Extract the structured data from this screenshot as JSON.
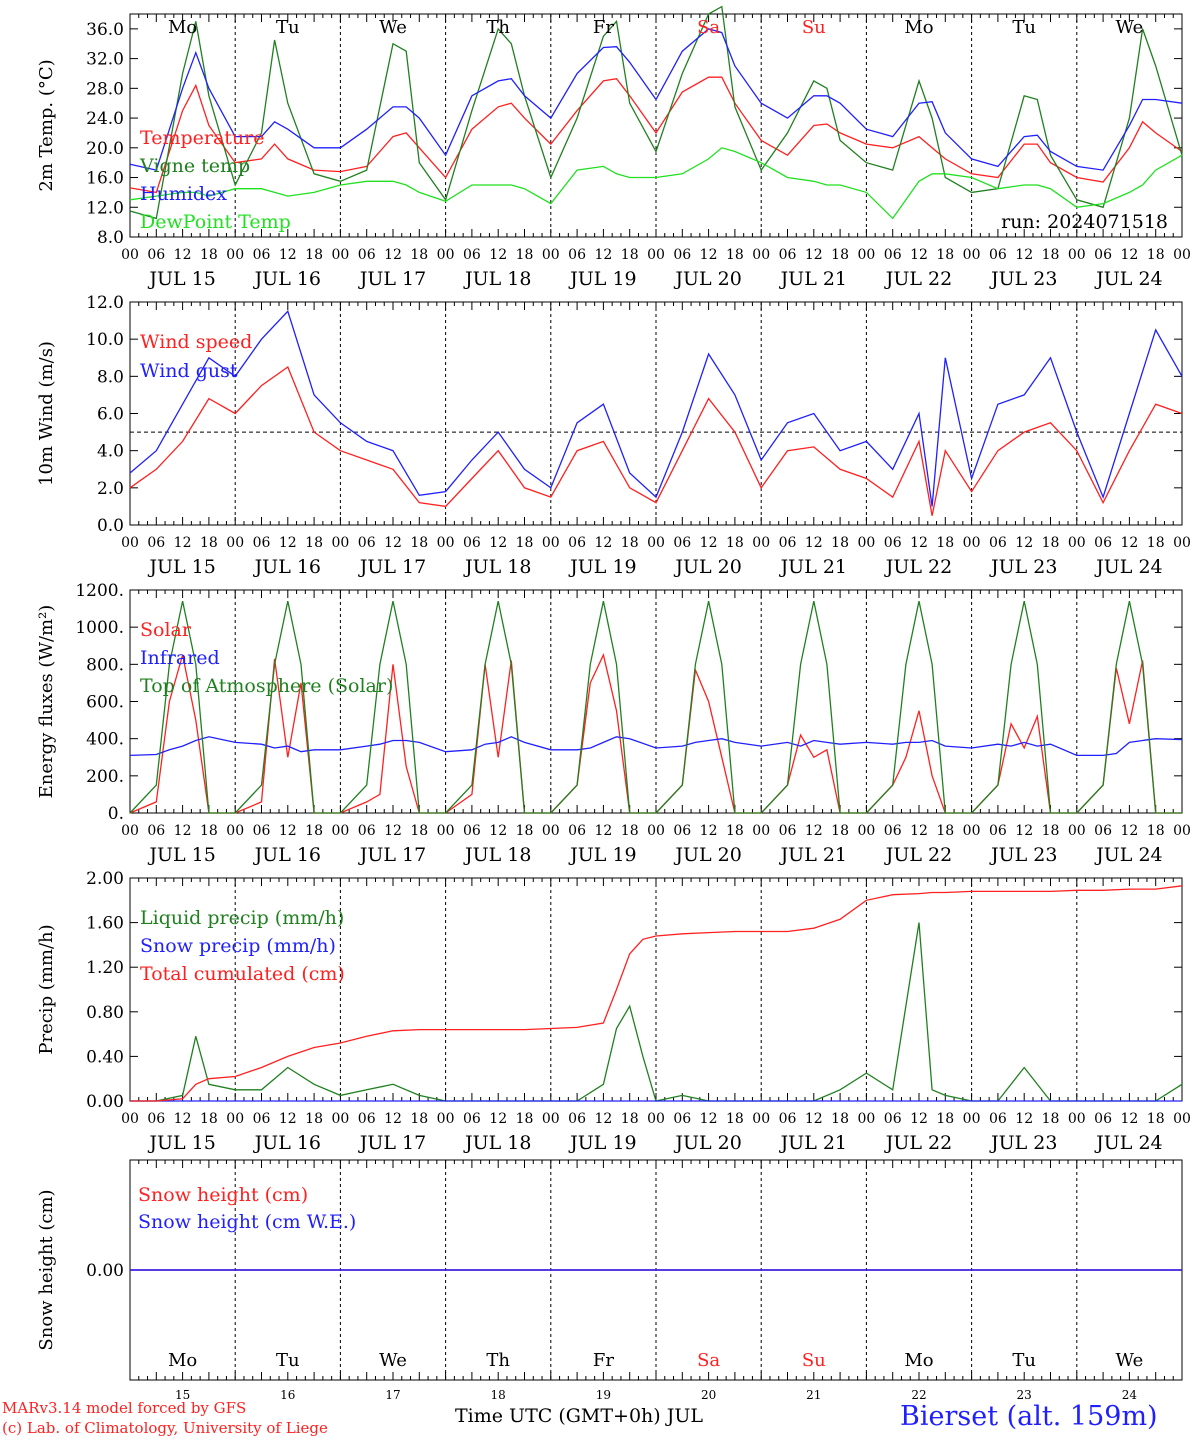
{
  "run_label": "run: 2024071518",
  "hour_ticks": [
    "00",
    "06",
    "12",
    "18"
  ],
  "date_labels": [
    "JUL 15",
    "JUL 16",
    "JUL 17",
    "JUL 18",
    "JUL 19",
    "JUL 20",
    "JUL 21",
    "JUL 22",
    "JUL 23",
    "JUL 24"
  ],
  "weekdays": [
    "Mo",
    "Tu",
    "We",
    "Th",
    "Fr",
    "Sa",
    "Su",
    "Mo",
    "Tu",
    "We"
  ],
  "weekend_color": "#ff2020",
  "weekday_color": "#000000",
  "day_numbers": [
    "15",
    "16",
    "17",
    "18",
    "19",
    "20",
    "21",
    "22",
    "23",
    "24"
  ],
  "footer": {
    "model": "MARv3.14 model forced by GFS",
    "copyright": "(c) Lab. of Climatology, University of Liege",
    "xlabel": "Time UTC (GMT+0h) JUL",
    "station": "Bierset (alt. 159m)"
  },
  "chart_data": [
    {
      "type": "line",
      "ylabel": "2m Temp. (°C)",
      "ylim": [
        8,
        38
      ],
      "yticks": [
        "8.0",
        "12.0",
        "16.0",
        "20.0",
        "24.0",
        "28.0",
        "32.0",
        "36.0"
      ],
      "x_hours_from_jul15_00": [
        0,
        6,
        12,
        15,
        18,
        24,
        30,
        33,
        36,
        42,
        48,
        54,
        60,
        63,
        66,
        72,
        78,
        84,
        87,
        90,
        96,
        102,
        108,
        111,
        114,
        120,
        126,
        132,
        135,
        138,
        144,
        150,
        156,
        159,
        162,
        168,
        174,
        180,
        183,
        186,
        192,
        198,
        204,
        207,
        210,
        216,
        222,
        228,
        231,
        234,
        240
      ],
      "series": [
        {
          "name": "Temperature",
          "color": "#ff2020",
          "values": [
            14.6,
            14.0,
            25.0,
            28.4,
            23.0,
            18.0,
            18.5,
            20.5,
            18.5,
            17.0,
            16.8,
            17.5,
            21.5,
            22.0,
            20.0,
            16.0,
            22.5,
            25.5,
            26.0,
            24.0,
            20.5,
            25.0,
            29.0,
            29.3,
            27.0,
            22.0,
            27.5,
            29.5,
            29.5,
            26.0,
            21.0,
            19.0,
            23.0,
            23.2,
            22.0,
            20.5,
            20.0,
            21.5,
            20.0,
            18.5,
            16.5,
            16.0,
            20.5,
            20.5,
            18.0,
            16.0,
            15.4,
            20.0,
            23.5,
            22.0,
            19.5
          ]
        },
        {
          "name": "Vigne temp",
          "color": "#208020",
          "values": [
            11.5,
            10.5,
            30.0,
            37.0,
            27.0,
            15.0,
            22.0,
            34.5,
            26.0,
            16.5,
            15.5,
            17.0,
            34.0,
            33.0,
            18.0,
            13.0,
            25.0,
            36.0,
            34.0,
            27.0,
            16.0,
            24.0,
            35.0,
            37.0,
            26.0,
            19.5,
            30.0,
            38.0,
            39.0,
            25.5,
            17.0,
            22.0,
            29.0,
            28.0,
            21.0,
            18.0,
            17.0,
            29.0,
            24.0,
            16.0,
            14.0,
            14.5,
            27.0,
            26.5,
            19.0,
            13.0,
            12.0,
            24.0,
            36.0,
            31.0,
            19.0
          ]
        },
        {
          "name": "Humidex",
          "color": "#2020ff",
          "values": [
            17.8,
            17.0,
            28.0,
            32.8,
            28.0,
            21.5,
            21.5,
            23.5,
            22.5,
            20.0,
            20.0,
            22.5,
            25.5,
            25.5,
            24.0,
            19.0,
            27.0,
            29.0,
            29.3,
            27.0,
            24.0,
            30.0,
            33.5,
            33.6,
            31.5,
            26.5,
            33.0,
            36.0,
            35.5,
            31.0,
            26.0,
            24.0,
            27.0,
            27.0,
            26.0,
            22.5,
            21.5,
            26.0,
            26.2,
            22.0,
            18.5,
            17.5,
            21.5,
            21.7,
            19.5,
            17.5,
            17.0,
            23.0,
            26.5,
            26.5,
            26.0
          ]
        },
        {
          "name": "DewPoint Temp",
          "color": "#20e020",
          "values": [
            13.0,
            13.5,
            14.0,
            14.0,
            13.5,
            14.5,
            14.5,
            14.0,
            13.5,
            14.0,
            15.0,
            15.5,
            15.5,
            15.0,
            14.0,
            12.8,
            15.0,
            15.0,
            15.0,
            14.5,
            12.5,
            17.0,
            17.5,
            16.5,
            16.0,
            16.0,
            16.5,
            18.5,
            20.0,
            19.5,
            18.0,
            16.0,
            15.5,
            15.0,
            15.0,
            14.0,
            10.5,
            15.5,
            16.5,
            16.5,
            16.0,
            14.5,
            15.0,
            15.0,
            14.5,
            12.0,
            12.5,
            14.0,
            15.0,
            17.0,
            19.0
          ]
        }
      ]
    },
    {
      "type": "line",
      "ylabel": "10m Wind (m/s)",
      "ylim": [
        0,
        12
      ],
      "yticks": [
        "0.0",
        "2.0",
        "4.0",
        "6.0",
        "8.0",
        "10.0",
        "12.0"
      ],
      "reference_line": 5.0,
      "x_hours_from_jul15_00": [
        0,
        6,
        12,
        18,
        24,
        30,
        36,
        42,
        48,
        54,
        60,
        66,
        72,
        78,
        84,
        90,
        96,
        102,
        108,
        114,
        120,
        126,
        132,
        138,
        144,
        150,
        156,
        162,
        168,
        174,
        180,
        183,
        186,
        192,
        198,
        204,
        210,
        216,
        222,
        228,
        234,
        240
      ],
      "series": [
        {
          "name": "Wind speed",
          "color": "#ff2020",
          "values": [
            2.0,
            3.0,
            4.5,
            6.8,
            6.0,
            7.5,
            8.5,
            5.0,
            4.0,
            3.5,
            3.0,
            1.2,
            1.0,
            2.5,
            4.0,
            2.0,
            1.5,
            4.0,
            4.5,
            2.0,
            1.2,
            4.0,
            6.8,
            5.0,
            2.0,
            4.0,
            4.2,
            3.0,
            2.5,
            1.5,
            4.5,
            0.5,
            4.0,
            1.8,
            4.0,
            5.0,
            5.5,
            4.0,
            1.2,
            4.0,
            6.5,
            6.0
          ]
        },
        {
          "name": "Wind gust",
          "color": "#2020ff",
          "values": [
            2.8,
            4.0,
            6.5,
            9.0,
            8.0,
            10.0,
            11.5,
            7.0,
            5.5,
            4.5,
            4.0,
            1.6,
            1.8,
            3.5,
            5.0,
            3.0,
            2.0,
            5.5,
            6.5,
            2.8,
            1.5,
            5.0,
            9.2,
            7.0,
            3.5,
            5.5,
            6.0,
            4.0,
            4.5,
            3.0,
            6.0,
            1.0,
            9.0,
            2.5,
            6.5,
            7.0,
            9.0,
            5.0,
            1.5,
            6.0,
            10.5,
            8.0
          ]
        }
      ]
    },
    {
      "type": "line",
      "ylabel": "Energy fluxes (W/m²)",
      "ylim": [
        0,
        1200
      ],
      "yticks": [
        "0.",
        "200.",
        "400.",
        "600.",
        "800.",
        "1000.",
        "1200."
      ],
      "x_hours_from_jul15_00": [
        0,
        6,
        9,
        12,
        15,
        18,
        24,
        30,
        33,
        36,
        39,
        42,
        48,
        54,
        57,
        60,
        63,
        66,
        72,
        78,
        81,
        84,
        87,
        90,
        96,
        102,
        105,
        108,
        111,
        114,
        120,
        126,
        129,
        132,
        135,
        138,
        144,
        150,
        153,
        156,
        159,
        162,
        168,
        174,
        177,
        180,
        183,
        186,
        192,
        198,
        201,
        204,
        207,
        210,
        216,
        222,
        225,
        228,
        231,
        234,
        240
      ],
      "series": [
        {
          "name": "Solar",
          "color": "#ff2020",
          "values": [
            0,
            60,
            600,
            850,
            500,
            0,
            0,
            60,
            830,
            300,
            700,
            0,
            0,
            60,
            100,
            800,
            250,
            0,
            0,
            100,
            800,
            300,
            820,
            0,
            0,
            150,
            700,
            850,
            550,
            0,
            0,
            150,
            770,
            600,
            300,
            0,
            0,
            150,
            420,
            300,
            340,
            0,
            0,
            150,
            300,
            550,
            200,
            0,
            0,
            150,
            480,
            350,
            520,
            0,
            0,
            150,
            780,
            480,
            820,
            0,
            0
          ]
        },
        {
          "name": "Infrared",
          "color": "#2020ff",
          "values": [
            310,
            315,
            340,
            360,
            390,
            410,
            380,
            370,
            350,
            360,
            330,
            340,
            340,
            360,
            370,
            390,
            390,
            380,
            330,
            340,
            370,
            380,
            410,
            380,
            340,
            340,
            350,
            380,
            410,
            400,
            350,
            360,
            380,
            390,
            400,
            380,
            360,
            380,
            360,
            390,
            380,
            370,
            380,
            370,
            380,
            380,
            390,
            360,
            350,
            370,
            360,
            380,
            360,
            370,
            310,
            310,
            320,
            380,
            390,
            400,
            395
          ]
        },
        {
          "name": "Top of Atmosphere (Solar)",
          "color": "#208020",
          "values": [
            0,
            150,
            800,
            1140,
            800,
            0,
            0,
            150,
            800,
            1140,
            800,
            0,
            0,
            150,
            800,
            1140,
            800,
            0,
            0,
            150,
            800,
            1140,
            800,
            0,
            0,
            150,
            800,
            1140,
            800,
            0,
            0,
            150,
            800,
            1140,
            800,
            0,
            0,
            150,
            800,
            1140,
            800,
            0,
            0,
            150,
            800,
            1140,
            800,
            0,
            0,
            150,
            800,
            1140,
            800,
            0,
            0,
            150,
            800,
            1140,
            800,
            0,
            0
          ]
        }
      ]
    },
    {
      "type": "line",
      "ylabel": "Precip (mm/h)",
      "ylim": [
        0,
        2
      ],
      "yticks": [
        "0.00",
        "0.40",
        "0.80",
        "1.20",
        "1.60",
        "2.00"
      ],
      "x_hours_from_jul15_00": [
        0,
        6,
        12,
        15,
        18,
        24,
        30,
        36,
        42,
        48,
        54,
        60,
        66,
        72,
        78,
        84,
        90,
        96,
        102,
        108,
        111,
        114,
        117,
        120,
        126,
        132,
        138,
        144,
        150,
        156,
        162,
        168,
        174,
        180,
        183,
        186,
        192,
        198,
        204,
        210,
        216,
        222,
        228,
        234,
        240
      ],
      "series": [
        {
          "name": "Liquid precip (mm/h)",
          "color": "#208020",
          "values": [
            0,
            0,
            0.05,
            0.58,
            0.15,
            0.1,
            0.1,
            0.3,
            0.15,
            0.05,
            0.1,
            0.15,
            0.05,
            0,
            0,
            0,
            0,
            0,
            0,
            0.15,
            0.65,
            0.85,
            0.4,
            0,
            0.05,
            0,
            0,
            0,
            0,
            0,
            0.1,
            0.25,
            0.1,
            1.6,
            0.1,
            0.05,
            0,
            0,
            0.3,
            0,
            0,
            0,
            0,
            0,
            0.15
          ]
        },
        {
          "name": "Snow precip (mm/h)",
          "color": "#2020ff",
          "values": [
            0,
            0,
            0,
            0,
            0,
            0,
            0,
            0,
            0,
            0,
            0,
            0,
            0,
            0,
            0,
            0,
            0,
            0,
            0,
            0,
            0,
            0,
            0,
            0,
            0,
            0,
            0,
            0,
            0,
            0,
            0,
            0,
            0,
            0,
            0,
            0,
            0,
            0,
            0,
            0,
            0,
            0,
            0,
            0,
            0
          ]
        },
        {
          "name": "Total cumulated (cm)",
          "color": "#ff2020",
          "values": [
            0,
            0,
            0.02,
            0.15,
            0.2,
            0.22,
            0.3,
            0.4,
            0.48,
            0.52,
            0.58,
            0.63,
            0.64,
            0.64,
            0.64,
            0.64,
            0.64,
            0.65,
            0.66,
            0.7,
            1.0,
            1.32,
            1.45,
            1.48,
            1.5,
            1.51,
            1.52,
            1.52,
            1.52,
            1.55,
            1.63,
            1.8,
            1.85,
            1.86,
            1.87,
            1.87,
            1.88,
            1.88,
            1.88,
            1.88,
            1.89,
            1.89,
            1.9,
            1.9,
            1.93
          ]
        }
      ]
    },
    {
      "type": "line",
      "ylabel": "Snow height (cm)",
      "ylim": [
        -1,
        1
      ],
      "yticks": [
        "0.00"
      ],
      "x_hours_from_jul15_00": [
        0,
        240
      ],
      "series": [
        {
          "name": "Snow height (cm)",
          "color": "#ff2020",
          "values": [
            0,
            0
          ]
        },
        {
          "name": "Snow height (cm W.E.)",
          "color": "#2020ff",
          "values": [
            0,
            0
          ]
        }
      ]
    }
  ]
}
